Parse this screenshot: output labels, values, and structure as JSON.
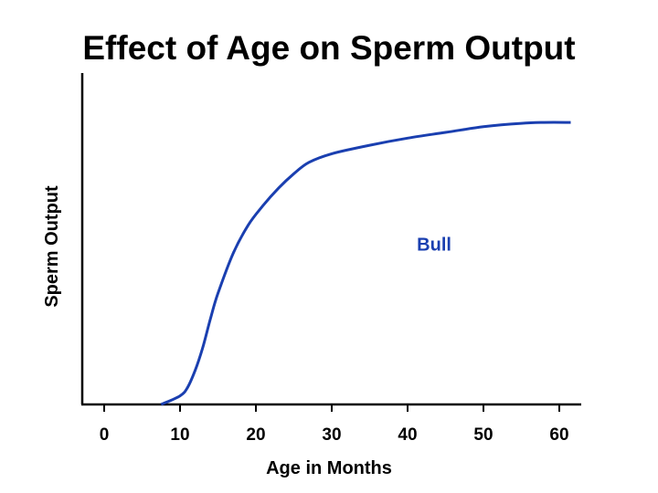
{
  "chart_data": {
    "type": "line",
    "title": "Effect of Age on Sperm Output",
    "xlabel": "Age in Months",
    "ylabel": "Sperm Output",
    "xlim": [
      -3,
      63
    ],
    "ylim": [
      0,
      100
    ],
    "xticks": [
      0,
      10,
      20,
      30,
      40,
      50,
      60
    ],
    "yticks_shown": false,
    "grid": false,
    "series": [
      {
        "name": "Bull",
        "color": "#1a3fb0",
        "x": [
          7.5,
          10,
          11,
          12,
          13,
          14,
          15,
          17,
          19,
          21,
          23,
          25,
          27,
          30,
          35,
          40,
          45,
          50,
          55,
          58,
          61.5
        ],
        "y": [
          0,
          3,
          6,
          12,
          20,
          30,
          39,
          53,
          63,
          70,
          76,
          81,
          85,
          88,
          91,
          93.5,
          95.5,
          97.5,
          98.7,
          99,
          99
        ]
      }
    ],
    "annotations": [
      {
        "text": "Bull",
        "x": 43.5,
        "y": 54,
        "color": "#1a3fb0"
      }
    ]
  }
}
